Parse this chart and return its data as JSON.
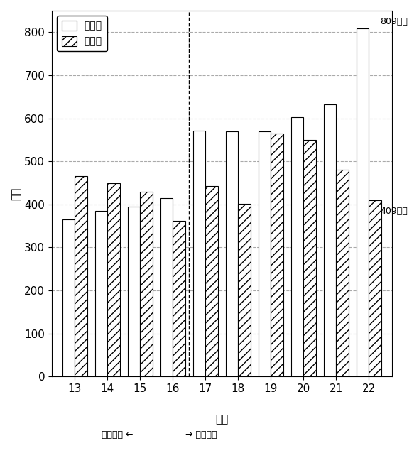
{
  "categories": [
    13,
    14,
    15,
    16,
    17,
    18,
    19,
    20,
    21,
    22
  ],
  "minsei": [
    365,
    385,
    395,
    415,
    572,
    570,
    570,
    603,
    633,
    809
  ],
  "doboku": [
    465,
    450,
    430,
    362,
    443,
    402,
    565,
    550,
    480,
    409
  ],
  "title_ylabel": "億円",
  "xlabel": "年度",
  "ylim": [
    0,
    850
  ],
  "yticks": [
    0,
    100,
    200,
    300,
    400,
    500,
    600,
    700,
    800
  ],
  "legend_minsei": "民生費",
  "legend_doboku": "土木費",
  "annotation1_text": "809億円",
  "annotation1_val": 809,
  "annotation2_text": "409億円",
  "annotation2_val": 409,
  "vline_x": 4.5,
  "left_label": "旧浜松市 ←",
  "right_label": "→ 新浜松市",
  "bar_width": 0.38,
  "bg_color": "#ffffff",
  "grid_color": "#aaaaaa",
  "border_color": "#000000",
  "hatch_doboku": "///",
  "hatch_minsei": ""
}
